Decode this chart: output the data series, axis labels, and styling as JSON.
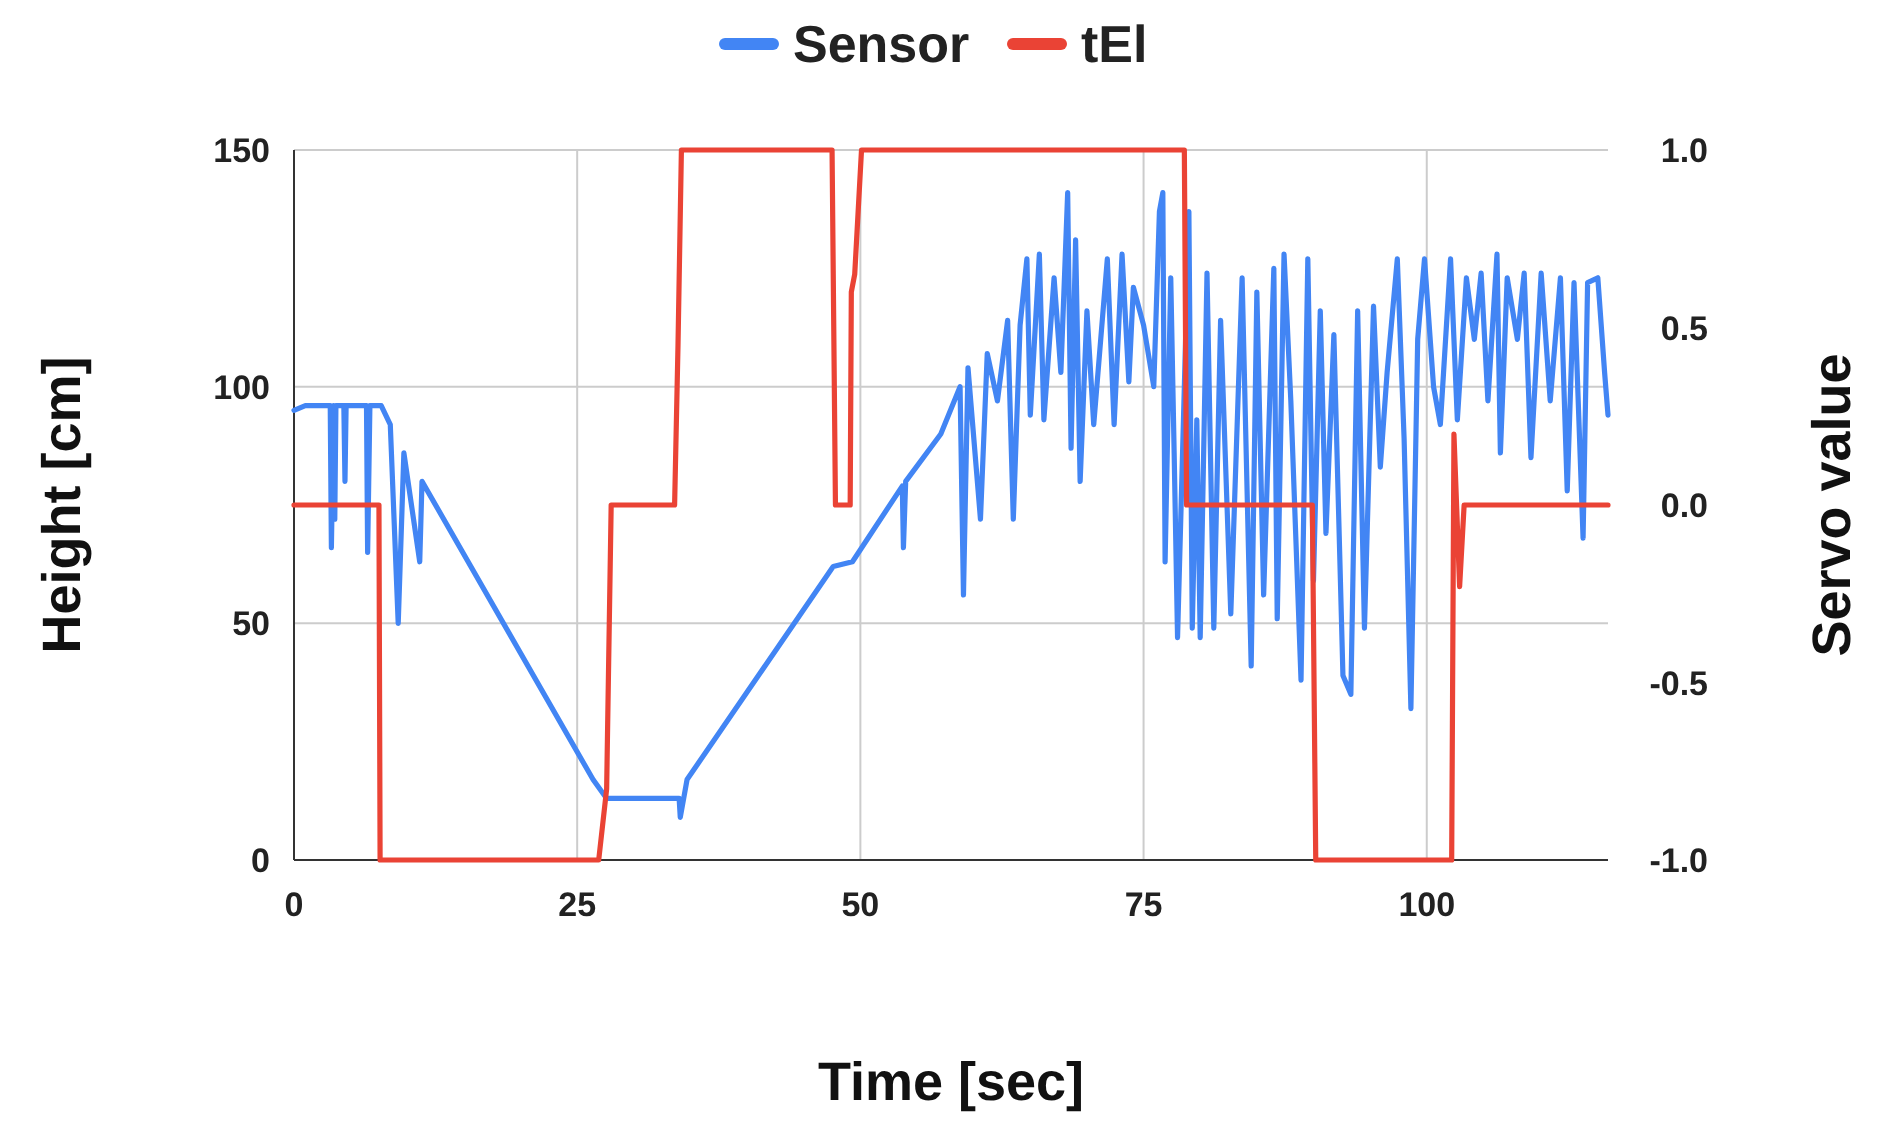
{
  "chart_data": {
    "type": "line",
    "xlabel": "Time [sec]",
    "ylabel": "Height [cm]",
    "y2label": "Servo value",
    "xlim": [
      0,
      116
    ],
    "xticks": [
      0,
      25,
      50,
      75,
      100
    ],
    "ylim": [
      0,
      150
    ],
    "yticks": [
      0,
      50,
      100,
      150
    ],
    "y2lim": [
      -1,
      1
    ],
    "y2ticks": [
      {
        "value": -1,
        "label": "-1.0"
      },
      {
        "value": -0.5,
        "label": "-0.5"
      },
      {
        "value": 0,
        "label": "0.0"
      },
      {
        "value": 0.5,
        "label": "0.5"
      },
      {
        "value": 1,
        "label": "1.0"
      }
    ],
    "grid": true,
    "legend": "top",
    "marker": "none",
    "line_style": "solid",
    "series": [
      {
        "name": "Sensor",
        "color": "#4285f4",
        "x": [
          0,
          1,
          3.2,
          3.3,
          3.5,
          3.6,
          3.7,
          4.4,
          4.5,
          4.6,
          6.4,
          6.5,
          6.7,
          7.7,
          8.5,
          9.2,
          9.7,
          11.1,
          11.3,
          26.4,
          27.6,
          34,
          34.1,
          34.7,
          47.6,
          49.3,
          53.7,
          53.8,
          54,
          57.1,
          58.8,
          59.1,
          59.5,
          60.6,
          61.2,
          62.1,
          63,
          63.5,
          64.1,
          64.7,
          65,
          65.8,
          66.2,
          67.1,
          67.7,
          68.3,
          68.6,
          69,
          69.4,
          70,
          70.6,
          71.8,
          72.4,
          73.1,
          73.7,
          74.1,
          75,
          75.9,
          76.4,
          76.7,
          76.9,
          77.4,
          77.7,
          78,
          78.6,
          79,
          79.3,
          79.7,
          80,
          80.6,
          81.2,
          81.8,
          82.7,
          83.7,
          84.5,
          85,
          85.6,
          86.5,
          86.8,
          87.4,
          88,
          88.9,
          89.5,
          90,
          90.6,
          91.1,
          91.8,
          92.6,
          93.3,
          93.9,
          94.5,
          95.3,
          95.9,
          96.5,
          97.4,
          98,
          98.6,
          99.2,
          99.8,
          100.6,
          101.2,
          102.1,
          102.7,
          103.5,
          104.2,
          104.8,
          105.4,
          106.2,
          106.5,
          107.1,
          108,
          108.6,
          109.2,
          110.1,
          110.9,
          111.8,
          112.4,
          113,
          113.8,
          114.2,
          115.1,
          115.7,
          116
        ],
        "values": [
          95,
          96,
          96,
          66,
          96,
          72,
          96,
          96,
          80,
          96,
          96,
          65,
          96,
          96,
          92,
          50,
          86,
          63,
          80,
          17,
          13,
          13,
          9,
          17,
          62,
          63,
          79,
          66,
          80,
          90,
          100,
          56,
          104,
          72,
          107,
          97,
          114,
          72,
          113,
          127,
          94,
          128,
          93,
          123,
          103,
          141,
          87,
          131,
          80,
          116,
          92,
          127,
          92,
          128,
          101,
          121,
          113,
          100,
          137,
          141,
          63,
          123,
          86,
          47,
          100,
          137,
          49,
          93,
          47,
          124,
          49,
          114,
          52,
          123,
          41,
          120,
          56,
          125,
          51,
          128,
          97,
          38,
          127,
          59,
          116,
          69,
          111,
          39,
          35,
          116,
          49,
          117,
          83,
          103,
          127,
          89,
          32,
          110,
          127,
          100,
          92,
          127,
          93,
          123,
          110,
          124,
          97,
          128,
          86,
          123,
          110,
          124,
          85,
          124,
          97,
          123,
          78,
          122,
          68,
          122,
          123,
          103,
          94
        ]
      },
      {
        "name": "tEl",
        "color": "#ea4335",
        "axis": "y2",
        "x": [
          0,
          7.5,
          7.6,
          26.9,
          27.6,
          28,
          33.6,
          33.9,
          34.2,
          47.5,
          47.8,
          49.1,
          49.2,
          49.5,
          50.1,
          78.6,
          78.8,
          89.9,
          90.2,
          102.2,
          102.4,
          102.9,
          103.3,
          116
        ],
        "values": [
          0,
          0,
          -1,
          -1,
          -0.8,
          0,
          0,
          0.45,
          1,
          1,
          0,
          0,
          0.6,
          0.65,
          1,
          1,
          0,
          0,
          -1,
          -1,
          0.2,
          -0.23,
          0,
          0
        ]
      }
    ]
  }
}
